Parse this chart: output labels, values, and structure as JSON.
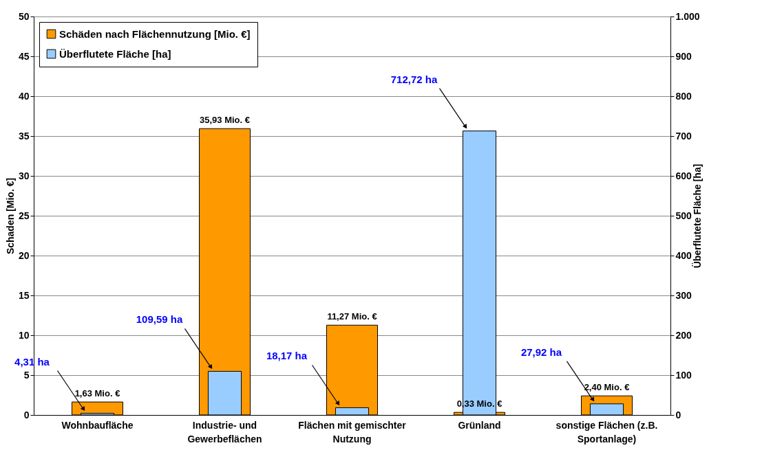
{
  "chart_data": {
    "type": "bar",
    "ylabel": "Schaden [Mio. €]",
    "y2label": "Überflutete Fläche [ha]",
    "categories": [
      "Wohnbaufläche",
      "Industrie- und Gewerbeflächen",
      "Flächen mit gemischter Nutzung",
      "Grünland",
      "sonstige Flächen (z.B. Sportanlage)"
    ],
    "series": [
      {
        "name": "Schäden nach Flächennutzung [Mio. €]",
        "color": "#ff9900",
        "values": [
          1.63,
          35.93,
          11.27,
          0.33,
          2.4
        ],
        "value_labels": [
          "1,63 Mio. €",
          "35,93 Mio. €",
          "11,27 Mio. €",
          "0,33 Mio. €",
          "2,40 Mio. €"
        ]
      },
      {
        "name": "Überflutete Fläche [ha]",
        "color": "#99ccff",
        "axis": "y2",
        "values": [
          4.31,
          109.59,
          18.17,
          712.72,
          27.92
        ],
        "value_labels": [
          "4,31 ha",
          "109,59 ha",
          "18,17 ha",
          "712,72 ha",
          "27,92 ha"
        ]
      }
    ],
    "ylim": [
      0,
      50
    ],
    "yticks": [
      0,
      5,
      10,
      15,
      20,
      25,
      30,
      35,
      40,
      45,
      50
    ],
    "y2lim": [
      0,
      1000
    ],
    "y2ticks": [
      0,
      100,
      200,
      300,
      400,
      500,
      600,
      700,
      800,
      900,
      {
        "value": 1000,
        "label": "1.000"
      }
    ],
    "grid": "y",
    "legend": "top left"
  }
}
